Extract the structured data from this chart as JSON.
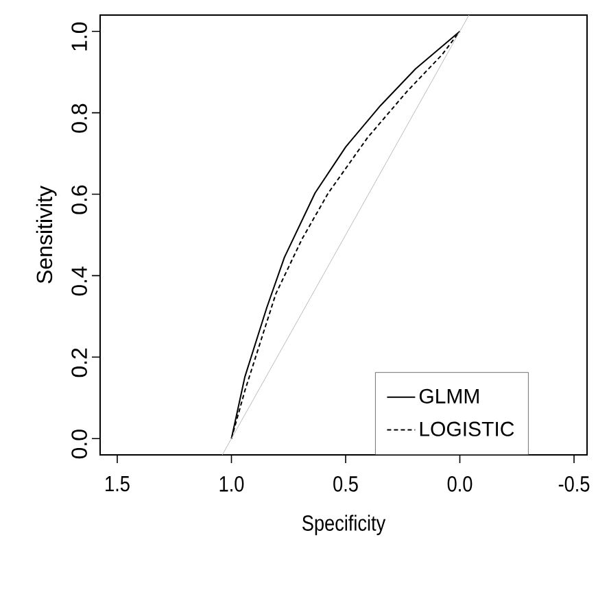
{
  "chart_data": {
    "type": "line",
    "xlabel": "Specificity",
    "ylabel": "Sensitivity",
    "xlim": [
      1.575,
      -0.557
    ],
    "ylim": [
      -0.04,
      1.04
    ],
    "xticks": [
      1.5,
      {
        "value": 1,
        "label": "1.0"
      },
      0.5,
      {
        "value": 0,
        "label": "0.0"
      },
      -0.5
    ],
    "yticks": [
      {
        "value": 0,
        "label": "0.0"
      },
      0.2,
      0.4,
      0.6,
      0.8,
      {
        "value": 1,
        "label": "1.0"
      }
    ],
    "legend": "bottom right",
    "grid": false,
    "marker": "none",
    "series": [
      {
        "name": "GLMM",
        "color": "#000000",
        "line_style": "solid",
        "x": [
          1.0,
          0.941,
          0.845,
          0.768,
          0.634,
          0.5,
          0.347,
          0.194,
          0.0
        ],
        "values": [
          0.0,
          0.152,
          0.322,
          0.445,
          0.603,
          0.716,
          0.818,
          0.908,
          1.0
        ]
      },
      {
        "name": "LOGISTIC",
        "color": "#000000",
        "line_style": "dashed",
        "x": [
          1.0,
          0.941,
          0.806,
          0.691,
          0.576,
          0.404,
          0.232,
          0.079,
          0.0
        ],
        "values": [
          0.0,
          0.118,
          0.355,
          0.49,
          0.603,
          0.739,
          0.852,
          0.942,
          1.0
        ]
      },
      {
        "color": "#bbbbbb",
        "line_style": "solid",
        "x": [
          1.04,
          -0.04
        ],
        "values": [
          -0.04,
          1.04
        ]
      }
    ]
  }
}
